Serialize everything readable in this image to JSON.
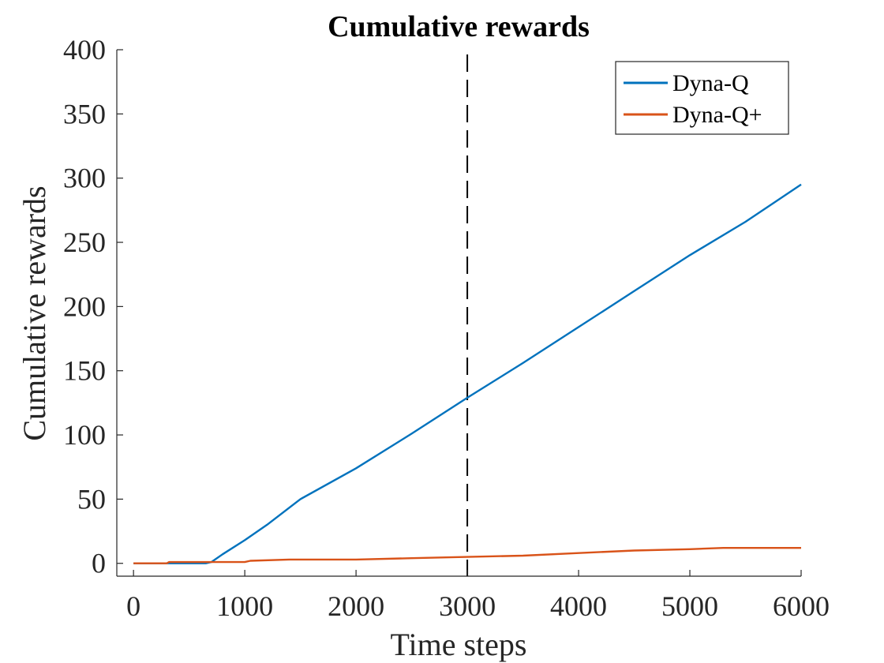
{
  "chart_data": {
    "type": "line",
    "title": "Cumulative rewards",
    "xlabel": "Time steps",
    "ylabel": "Cumulative rewards",
    "xlim": [
      -150,
      6000
    ],
    "ylim": [
      -10,
      400
    ],
    "xticks": [
      0,
      1000,
      2000,
      3000,
      4000,
      5000,
      6000
    ],
    "yticks": [
      0,
      50,
      100,
      150,
      200,
      250,
      300,
      350,
      400
    ],
    "grid": false,
    "legend": "top-right",
    "vline": {
      "x": 3000,
      "style": "dashed",
      "color": "#000000"
    },
    "series": [
      {
        "name": "Dyna-Q",
        "color": "#0072BD",
        "points": [
          [
            0,
            0
          ],
          [
            300,
            0
          ],
          [
            650,
            0
          ],
          [
            700,
            1
          ],
          [
            800,
            7
          ],
          [
            1000,
            18
          ],
          [
            1200,
            30
          ],
          [
            1500,
            50
          ],
          [
            2000,
            74
          ],
          [
            2500,
            101
          ],
          [
            3000,
            129
          ],
          [
            3500,
            156
          ],
          [
            4000,
            184
          ],
          [
            4500,
            212
          ],
          [
            5000,
            240
          ],
          [
            5500,
            266
          ],
          [
            6000,
            295
          ]
        ]
      },
      {
        "name": "Dyna-Q+",
        "color": "#D95319",
        "points": [
          [
            0,
            0
          ],
          [
            300,
            0
          ],
          [
            320,
            1
          ],
          [
            1000,
            1
          ],
          [
            1050,
            2
          ],
          [
            1400,
            3
          ],
          [
            2000,
            3
          ],
          [
            2500,
            4
          ],
          [
            3000,
            5
          ],
          [
            3500,
            6
          ],
          [
            4000,
            8
          ],
          [
            4500,
            10
          ],
          [
            5000,
            11
          ],
          [
            5300,
            12
          ],
          [
            6000,
            12
          ]
        ]
      }
    ]
  }
}
